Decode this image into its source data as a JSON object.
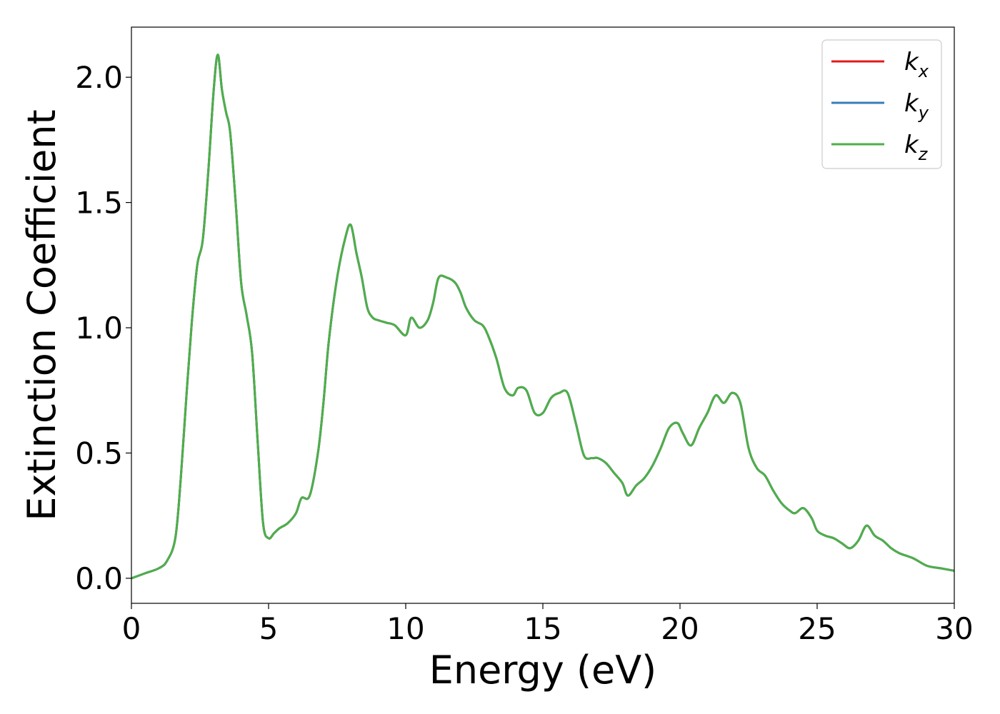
{
  "chart_data": {
    "type": "line",
    "xlabel": "Energy (eV)",
    "ylabel": "Extinction Coefficient",
    "xlim": [
      0,
      30
    ],
    "ylim": [
      -0.1,
      2.2
    ],
    "x_ticks": [
      "0",
      "5",
      "10",
      "15",
      "20",
      "25",
      "30"
    ],
    "y_ticks": [
      "0.0",
      "0.5",
      "1.0",
      "1.5",
      "2.0"
    ],
    "grid": false,
    "legend_placement": "top-right",
    "series": [
      {
        "name": "k",
        "subscript": "x",
        "color": "#e41a1c",
        "x": [
          0.0,
          0.5,
          1.0,
          1.3,
          1.6,
          1.8,
          2.0,
          2.2,
          2.4,
          2.6,
          2.8,
          3.0,
          3.15,
          3.3,
          3.45,
          3.6,
          3.8,
          4.0,
          4.2,
          4.4,
          4.6,
          4.8,
          5.0,
          5.2,
          5.4,
          5.7,
          6.0,
          6.2,
          6.5,
          6.8,
          7.0,
          7.2,
          7.5,
          7.8,
          8.0,
          8.2,
          8.4,
          8.6,
          8.8,
          9.0,
          9.3,
          9.6,
          10.0,
          10.2,
          10.5,
          10.8,
          11.0,
          11.2,
          11.5,
          11.8,
          12.0,
          12.2,
          12.5,
          12.8,
          13.0,
          13.3,
          13.6,
          13.9,
          14.1,
          14.4,
          14.7,
          15.0,
          15.3,
          15.6,
          15.9,
          16.2,
          16.5,
          16.8,
          17.0,
          17.3,
          17.6,
          17.9,
          18.1,
          18.4,
          18.7,
          19.0,
          19.3,
          19.6,
          19.9,
          20.1,
          20.4,
          20.7,
          21.0,
          21.3,
          21.6,
          21.9,
          22.2,
          22.5,
          22.8,
          23.1,
          23.4,
          23.7,
          24.0,
          24.2,
          24.5,
          24.8,
          25.0,
          25.3,
          25.6,
          25.9,
          26.2,
          26.5,
          26.8,
          27.1,
          27.4,
          27.7,
          28.0,
          28.5,
          29.0,
          29.5,
          30.0
        ],
        "values": [
          0.0,
          0.02,
          0.04,
          0.07,
          0.16,
          0.4,
          0.72,
          1.02,
          1.25,
          1.35,
          1.62,
          1.95,
          2.09,
          1.95,
          1.86,
          1.78,
          1.5,
          1.18,
          1.05,
          0.9,
          0.55,
          0.22,
          0.16,
          0.18,
          0.2,
          0.22,
          0.26,
          0.32,
          0.33,
          0.5,
          0.7,
          0.95,
          1.2,
          1.36,
          1.41,
          1.3,
          1.2,
          1.08,
          1.04,
          1.03,
          1.02,
          1.01,
          0.97,
          1.04,
          1.0,
          1.03,
          1.1,
          1.2,
          1.2,
          1.18,
          1.14,
          1.08,
          1.03,
          1.01,
          0.97,
          0.88,
          0.76,
          0.73,
          0.76,
          0.75,
          0.66,
          0.66,
          0.72,
          0.74,
          0.74,
          0.62,
          0.49,
          0.48,
          0.48,
          0.46,
          0.42,
          0.38,
          0.33,
          0.37,
          0.4,
          0.45,
          0.52,
          0.6,
          0.62,
          0.58,
          0.53,
          0.6,
          0.66,
          0.73,
          0.7,
          0.74,
          0.7,
          0.52,
          0.44,
          0.41,
          0.35,
          0.3,
          0.27,
          0.26,
          0.28,
          0.24,
          0.19,
          0.17,
          0.16,
          0.14,
          0.12,
          0.15,
          0.21,
          0.17,
          0.15,
          0.12,
          0.1,
          0.08,
          0.05,
          0.04,
          0.03
        ]
      },
      {
        "name": "k",
        "subscript": "y",
        "color": "#377eb8",
        "x": [
          0.0,
          0.5,
          1.0,
          1.3,
          1.6,
          1.8,
          2.0,
          2.2,
          2.4,
          2.6,
          2.8,
          3.0,
          3.15,
          3.3,
          3.45,
          3.6,
          3.8,
          4.0,
          4.2,
          4.4,
          4.6,
          4.8,
          5.0,
          5.2,
          5.4,
          5.7,
          6.0,
          6.2,
          6.5,
          6.8,
          7.0,
          7.2,
          7.5,
          7.8,
          8.0,
          8.2,
          8.4,
          8.6,
          8.8,
          9.0,
          9.3,
          9.6,
          10.0,
          10.2,
          10.5,
          10.8,
          11.0,
          11.2,
          11.5,
          11.8,
          12.0,
          12.2,
          12.5,
          12.8,
          13.0,
          13.3,
          13.6,
          13.9,
          14.1,
          14.4,
          14.7,
          15.0,
          15.3,
          15.6,
          15.9,
          16.2,
          16.5,
          16.8,
          17.0,
          17.3,
          17.6,
          17.9,
          18.1,
          18.4,
          18.7,
          19.0,
          19.3,
          19.6,
          19.9,
          20.1,
          20.4,
          20.7,
          21.0,
          21.3,
          21.6,
          21.9,
          22.2,
          22.5,
          22.8,
          23.1,
          23.4,
          23.7,
          24.0,
          24.2,
          24.5,
          24.8,
          25.0,
          25.3,
          25.6,
          25.9,
          26.2,
          26.5,
          26.8,
          27.1,
          27.4,
          27.7,
          28.0,
          28.5,
          29.0,
          29.5,
          30.0
        ],
        "values": [
          0.0,
          0.02,
          0.04,
          0.07,
          0.16,
          0.4,
          0.72,
          1.02,
          1.25,
          1.35,
          1.62,
          1.95,
          2.09,
          1.95,
          1.86,
          1.78,
          1.5,
          1.18,
          1.05,
          0.9,
          0.55,
          0.22,
          0.16,
          0.18,
          0.2,
          0.22,
          0.26,
          0.32,
          0.33,
          0.5,
          0.7,
          0.95,
          1.2,
          1.36,
          1.41,
          1.3,
          1.2,
          1.08,
          1.04,
          1.03,
          1.02,
          1.01,
          0.97,
          1.04,
          1.0,
          1.03,
          1.1,
          1.2,
          1.2,
          1.18,
          1.14,
          1.08,
          1.03,
          1.01,
          0.97,
          0.88,
          0.76,
          0.73,
          0.76,
          0.75,
          0.66,
          0.66,
          0.72,
          0.74,
          0.74,
          0.62,
          0.49,
          0.48,
          0.48,
          0.46,
          0.42,
          0.38,
          0.33,
          0.37,
          0.4,
          0.45,
          0.52,
          0.6,
          0.62,
          0.58,
          0.53,
          0.6,
          0.66,
          0.73,
          0.7,
          0.74,
          0.7,
          0.52,
          0.44,
          0.41,
          0.35,
          0.3,
          0.27,
          0.26,
          0.28,
          0.24,
          0.19,
          0.17,
          0.16,
          0.14,
          0.12,
          0.15,
          0.21,
          0.17,
          0.15,
          0.12,
          0.1,
          0.08,
          0.05,
          0.04,
          0.03
        ]
      },
      {
        "name": "k",
        "subscript": "z",
        "color": "#4daf4a",
        "x": [
          0.0,
          0.5,
          1.0,
          1.3,
          1.6,
          1.8,
          2.0,
          2.2,
          2.4,
          2.6,
          2.8,
          3.0,
          3.15,
          3.3,
          3.45,
          3.6,
          3.8,
          4.0,
          4.2,
          4.4,
          4.6,
          4.8,
          5.0,
          5.2,
          5.4,
          5.7,
          6.0,
          6.2,
          6.5,
          6.8,
          7.0,
          7.2,
          7.5,
          7.8,
          8.0,
          8.2,
          8.4,
          8.6,
          8.8,
          9.0,
          9.3,
          9.6,
          10.0,
          10.2,
          10.5,
          10.8,
          11.0,
          11.2,
          11.5,
          11.8,
          12.0,
          12.2,
          12.5,
          12.8,
          13.0,
          13.3,
          13.6,
          13.9,
          14.1,
          14.4,
          14.7,
          15.0,
          15.3,
          15.6,
          15.9,
          16.2,
          16.5,
          16.8,
          17.0,
          17.3,
          17.6,
          17.9,
          18.1,
          18.4,
          18.7,
          19.0,
          19.3,
          19.6,
          19.9,
          20.1,
          20.4,
          20.7,
          21.0,
          21.3,
          21.6,
          21.9,
          22.2,
          22.5,
          22.8,
          23.1,
          23.4,
          23.7,
          24.0,
          24.2,
          24.5,
          24.8,
          25.0,
          25.3,
          25.6,
          25.9,
          26.2,
          26.5,
          26.8,
          27.1,
          27.4,
          27.7,
          28.0,
          28.5,
          29.0,
          29.5,
          30.0
        ],
        "values": [
          0.0,
          0.02,
          0.04,
          0.07,
          0.16,
          0.4,
          0.72,
          1.02,
          1.25,
          1.35,
          1.62,
          1.95,
          2.09,
          1.95,
          1.86,
          1.78,
          1.5,
          1.18,
          1.05,
          0.9,
          0.55,
          0.22,
          0.16,
          0.18,
          0.2,
          0.22,
          0.26,
          0.32,
          0.33,
          0.5,
          0.7,
          0.95,
          1.2,
          1.36,
          1.41,
          1.3,
          1.2,
          1.08,
          1.04,
          1.03,
          1.02,
          1.01,
          0.97,
          1.04,
          1.0,
          1.03,
          1.1,
          1.2,
          1.2,
          1.18,
          1.14,
          1.08,
          1.03,
          1.01,
          0.97,
          0.88,
          0.76,
          0.73,
          0.76,
          0.75,
          0.66,
          0.66,
          0.72,
          0.74,
          0.74,
          0.62,
          0.49,
          0.48,
          0.48,
          0.46,
          0.42,
          0.38,
          0.33,
          0.37,
          0.4,
          0.45,
          0.52,
          0.6,
          0.62,
          0.58,
          0.53,
          0.6,
          0.66,
          0.73,
          0.7,
          0.74,
          0.7,
          0.52,
          0.44,
          0.41,
          0.35,
          0.3,
          0.27,
          0.26,
          0.28,
          0.24,
          0.19,
          0.17,
          0.16,
          0.14,
          0.12,
          0.15,
          0.21,
          0.17,
          0.15,
          0.12,
          0.1,
          0.08,
          0.05,
          0.04,
          0.03
        ]
      }
    ]
  }
}
